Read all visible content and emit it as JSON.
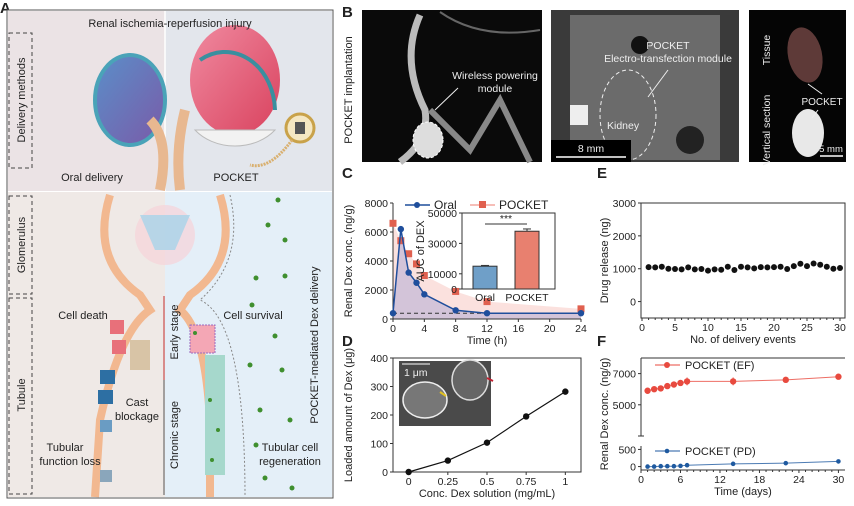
{
  "panel_labels": [
    "A",
    "B",
    "C",
    "D",
    "E",
    "F"
  ],
  "panel_a": {
    "title": "Renal ischemia-reperfusion injury",
    "side_labels": [
      "Delivery methods",
      "Glomerulus",
      "Tubule"
    ],
    "oral_delivery": "Oral delivery",
    "pocket": "POCKET",
    "cell_death": "Cell death",
    "cast_blockage": [
      "Cast",
      "blockage"
    ],
    "tubular_function_loss": [
      "Tubular",
      "function loss"
    ],
    "early_stage": "Early stage",
    "chronic_stage": "Chronic stage",
    "cell_survival": "Cell survival",
    "tubular_cell_regeneration": [
      "Tubular cell",
      "regeneration"
    ],
    "pocket_mediated": "POCKET-mediated Dex delivery",
    "colors": {
      "oral_bg": "#e9e1e3",
      "pocket_bg": "#dfe9f3",
      "drug_dot": "#3f8f2f"
    }
  },
  "panel_b": {
    "row_label": "POCKET implantation",
    "image1_annotation": [
      "Wireless powering",
      "module"
    ],
    "image2_annotation": [
      "POCKET",
      "Electro-transfection module"
    ],
    "kidney": "Kidney",
    "scale_bar_1": "8 mm",
    "tissue": "Tissue",
    "vertical_section": "Vertical section",
    "pocket": "POCKET",
    "scale_bar_2": "5 mm"
  },
  "chart_data": [
    {
      "id": "C",
      "type": "line",
      "xlabel": "Time (h)",
      "ylabel": "Renal Dex conc. (ng/g)",
      "xlim": [
        0,
        24
      ],
      "ylim": [
        0,
        8000
      ],
      "xticks": [
        0,
        4,
        8,
        12,
        16,
        20,
        24
      ],
      "yticks": [
        0,
        2000,
        4000,
        6000,
        8000
      ],
      "baseline": 400,
      "series": [
        {
          "name": "Oral",
          "color": "#1f4e9c",
          "marker": "circle",
          "x": [
            0,
            1,
            2,
            3,
            4,
            8,
            12,
            24
          ],
          "y": [
            400,
            6200,
            3200,
            2500,
            1700,
            600,
            400,
            400
          ]
        },
        {
          "name": "POCKET",
          "color": "#e0604f",
          "marker": "square",
          "x": [
            0,
            1,
            2,
            3,
            4,
            8,
            12,
            24
          ],
          "y": [
            6600,
            5400,
            4500,
            3800,
            3000,
            1900,
            1200,
            700
          ]
        }
      ],
      "inset": {
        "type": "bar",
        "ylabel": "AUC of DEX",
        "categories": [
          "Oral",
          "POCKET"
        ],
        "values": [
          15000,
          38000
        ],
        "errors": [
          500,
          1500
        ],
        "colors": [
          "#6f9fc8",
          "#e8806f"
        ],
        "ylim": [
          0,
          50000
        ],
        "yticks": [
          0,
          10000,
          30000,
          50000
        ],
        "significance": "***"
      }
    },
    {
      "id": "D",
      "type": "line",
      "xlabel": "Conc. Dex solution (mg/mL)",
      "ylabel": "Loaded amount of Dex (μg)",
      "xlim": [
        -0.1,
        1.1
      ],
      "ylim": [
        0,
        400
      ],
      "xticks": [
        "0",
        "0.25",
        "0.5",
        "0.75",
        "1"
      ],
      "yticks": [
        0,
        100,
        200,
        300,
        400
      ],
      "x": [
        0,
        0.25,
        0.5,
        0.75,
        1
      ],
      "y": [
        0,
        40,
        103,
        195,
        282
      ],
      "inset_scale_bar": "1 μm"
    },
    {
      "id": "E",
      "type": "scatter",
      "xlabel": "No. of delivery events",
      "ylabel": "Drug release (ng)",
      "xlim": [
        0,
        30
      ],
      "ylim": [
        -500,
        3000
      ],
      "xticks": [
        0,
        5,
        10,
        15,
        20,
        25,
        30
      ],
      "yticks": [
        0,
        1000,
        2000,
        3000
      ],
      "x": [
        1,
        2,
        3,
        4,
        5,
        6,
        7,
        8,
        9,
        10,
        11,
        12,
        13,
        14,
        15,
        16,
        17,
        18,
        19,
        20,
        21,
        22,
        23,
        24,
        25,
        26,
        27,
        28,
        29,
        30
      ],
      "y": [
        1050,
        1040,
        1060,
        1000,
        990,
        980,
        1040,
        980,
        990,
        940,
        980,
        970,
        1060,
        960,
        1060,
        1040,
        1010,
        1050,
        1040,
        1050,
        1060,
        990,
        1080,
        1150,
        1080,
        1160,
        1120,
        1060,
        1000,
        1020
      ]
    },
    {
      "id": "F",
      "type": "line",
      "xlabel": "Time (days)",
      "ylabel": "Renal Dex conc. (ng/g)",
      "xlim": [
        0,
        31
      ],
      "broken_axis": {
        "lower": [
          -100,
          600
        ],
        "upper": [
          3000,
          8000
        ]
      },
      "xticks": [
        0,
        6,
        12,
        18,
        24,
        30
      ],
      "yticks": [
        0,
        500,
        5000,
        7000
      ],
      "series": [
        {
          "name": "POCKET (EF)",
          "color": "#e84a3f",
          "x": [
            1,
            2,
            3,
            4,
            5,
            6,
            7,
            14,
            22,
            30
          ],
          "y": [
            5900,
            6000,
            6050,
            6200,
            6300,
            6400,
            6500,
            6500,
            6600,
            6800
          ]
        },
        {
          "name": "POCKET (PD)",
          "color": "#1f5aa0",
          "x": [
            1,
            2,
            3,
            4,
            5,
            6,
            7,
            14,
            22,
            30
          ],
          "y": [
            0,
            0,
            10,
            10,
            10,
            20,
            40,
            80,
            100,
            150
          ]
        }
      ]
    }
  ]
}
